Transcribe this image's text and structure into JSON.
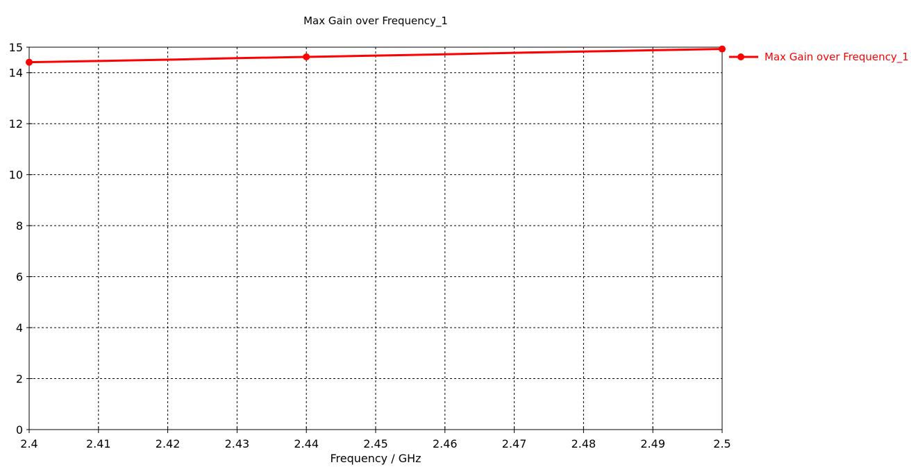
{
  "title": "Max Gain over Frequency_1",
  "chart_data": {
    "type": "line",
    "title": "Max Gain over Frequency_1",
    "xlabel": "Frequency / GHz",
    "ylabel": "",
    "xlim": [
      2.4,
      2.5
    ],
    "ylim": [
      0,
      15
    ],
    "x_tick_values": [
      2.4,
      2.41,
      2.42,
      2.43,
      2.44,
      2.45,
      2.46,
      2.47,
      2.48,
      2.49,
      2.5
    ],
    "x_tick_labels": [
      "2.4",
      "2.41",
      "2.42",
      "2.43",
      "2.44",
      "2.45",
      "2.46",
      "2.47",
      "2.48",
      "2.49",
      "2.5"
    ],
    "y_tick_values": [
      0,
      2,
      4,
      6,
      8,
      10,
      12,
      14,
      15
    ],
    "y_tick_labels": [
      "0",
      "2",
      "4",
      "6",
      "8",
      "10",
      "12",
      "14",
      "15"
    ],
    "grid": "dashed",
    "legend_position": "top-right-outside",
    "series": [
      {
        "name": "Max Gain over Frequency_1",
        "color": "#ff0000",
        "x": [
          2.4,
          2.41,
          2.42,
          2.43,
          2.44,
          2.45,
          2.46,
          2.47,
          2.48,
          2.49,
          2.5
        ],
        "values": [
          14.41,
          14.46,
          14.51,
          14.57,
          14.62,
          14.67,
          14.72,
          14.78,
          14.83,
          14.88,
          14.93
        ],
        "marker_x": [
          2.4,
          2.44,
          2.5
        ]
      }
    ]
  },
  "colors": {
    "background": "#ffffff",
    "axis": "#000000",
    "grid": "#000000",
    "series": "#ff0000",
    "title_text": "#000000",
    "legend_text": "#ff0000"
  }
}
